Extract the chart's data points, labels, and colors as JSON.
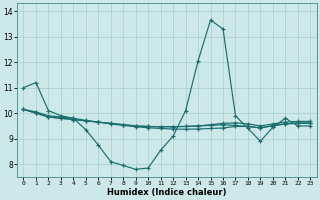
{
  "xlabel": "Humidex (Indice chaleur)",
  "bg_color": "#cce8e8",
  "grid_color": "#aacece",
  "line_color": "#1a6e6e",
  "xlim": [
    -0.5,
    23.5
  ],
  "ylim": [
    7.5,
    14.3
  ],
  "yticks": [
    8,
    9,
    10,
    11,
    12,
    13,
    14
  ],
  "xticks": [
    0,
    1,
    2,
    3,
    4,
    5,
    6,
    7,
    8,
    9,
    10,
    11,
    12,
    13,
    14,
    15,
    16,
    17,
    18,
    19,
    20,
    21,
    22,
    23
  ],
  "series": [
    [
      11.0,
      11.2,
      10.1,
      9.9,
      9.8,
      9.35,
      8.75,
      8.1,
      7.95,
      7.8,
      7.85,
      8.55,
      9.1,
      10.1,
      12.05,
      13.65,
      13.3,
      9.9,
      9.4,
      8.9,
      9.45,
      9.8,
      9.5,
      9.5
    ],
    [
      10.15,
      10.05,
      9.9,
      9.85,
      9.8,
      9.72,
      9.65,
      9.58,
      9.52,
      9.47,
      9.43,
      9.4,
      9.38,
      9.37,
      9.38,
      9.4,
      9.42,
      9.48,
      9.48,
      9.42,
      9.52,
      9.58,
      9.62,
      9.62
    ],
    [
      10.15,
      10.0,
      9.85,
      9.8,
      9.75,
      9.7,
      9.65,
      9.6,
      9.55,
      9.5,
      9.48,
      9.47,
      9.47,
      9.48,
      9.5,
      9.52,
      9.55,
      9.52,
      9.48,
      9.43,
      9.5,
      9.58,
      9.6,
      9.6
    ],
    [
      10.15,
      10.0,
      9.85,
      9.8,
      9.75,
      9.7,
      9.65,
      9.6,
      9.55,
      9.5,
      9.48,
      9.47,
      9.47,
      9.48,
      9.5,
      9.55,
      9.6,
      9.62,
      9.58,
      9.5,
      9.58,
      9.65,
      9.68,
      9.68
    ]
  ]
}
